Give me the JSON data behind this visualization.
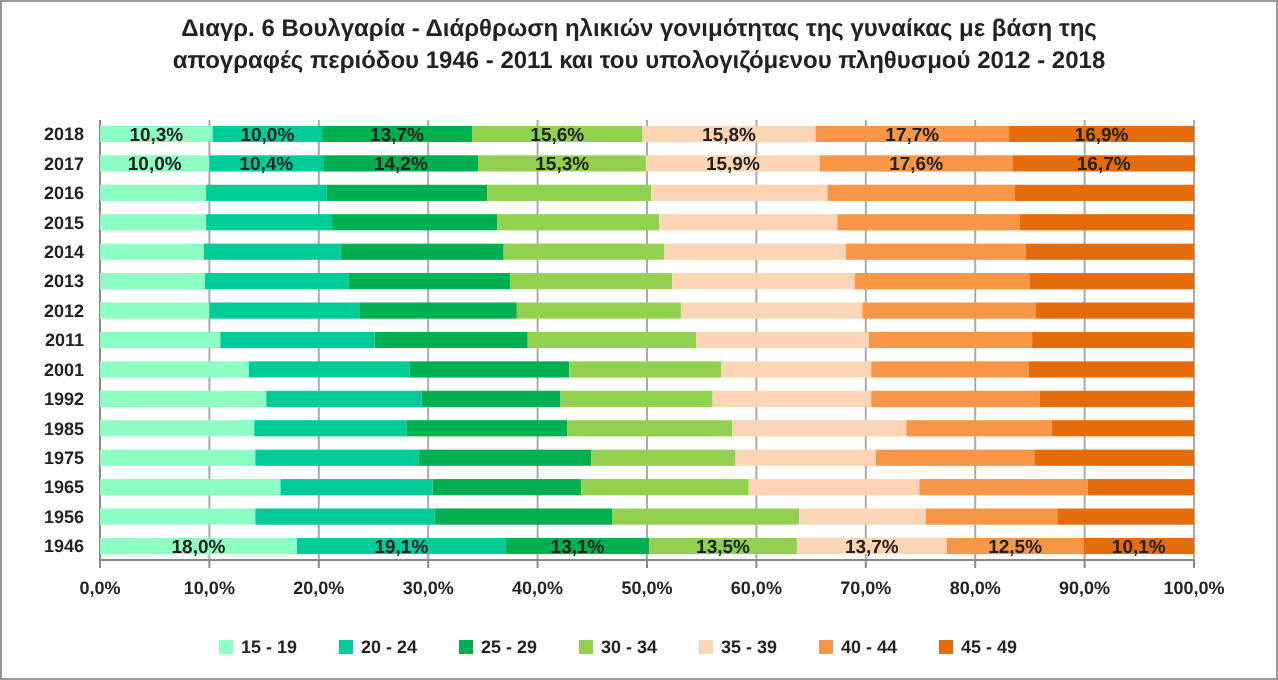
{
  "chart_data": {
    "type": "bar",
    "orientation": "horizontal",
    "stacked": true,
    "title": "Διαγρ. 6   Βουλγαρία - Διάρθρωση ηλικιών γονιμότητας της γυναίκας με βάση της απογραφές περιόδου  1946 - 2011 και του υπολογιζόμενου πληθυσμού 2012 - 2018",
    "categories": [
      "2018",
      "2017",
      "2016",
      "2015",
      "2014",
      "2013",
      "2012",
      "2011",
      "2001",
      "1992",
      "1985",
      "1975",
      "1965",
      "1956",
      "1946"
    ],
    "xlim": [
      0,
      100
    ],
    "xticks": [
      {
        "value": 0,
        "label": "0,0%"
      },
      {
        "value": 10,
        "label": "10,0%"
      },
      {
        "value": 20,
        "label": "20,0%"
      },
      {
        "value": 30,
        "label": "30,0%"
      },
      {
        "value": 40,
        "label": "40,0%"
      },
      {
        "value": 50,
        "label": "50,0%"
      },
      {
        "value": 60,
        "label": "60,0%"
      },
      {
        "value": 70,
        "label": "70,0%"
      },
      {
        "value": 80,
        "label": "80,0%"
      },
      {
        "value": 90,
        "label": "90,0%"
      },
      {
        "value": 100,
        "label": "100,0%"
      }
    ],
    "grid": "x",
    "legend": "bottom",
    "series": [
      {
        "name": "15 - 19",
        "color": "#8effc2",
        "values": [
          10.3,
          10.0,
          9.7,
          9.7,
          9.5,
          9.6,
          10.0,
          11.0,
          13.6,
          15.2,
          14.1,
          14.2,
          16.5,
          14.2,
          18.0
        ],
        "value_labels": [
          "10,3%",
          "10,0%",
          null,
          null,
          null,
          null,
          null,
          null,
          null,
          null,
          null,
          null,
          null,
          null,
          "18,0%"
        ]
      },
      {
        "name": "20 - 24",
        "color": "#00cc99",
        "values": [
          10.0,
          10.4,
          11.0,
          11.5,
          12.5,
          13.1,
          13.7,
          14.1,
          14.7,
          14.2,
          13.9,
          14.9,
          13.9,
          16.4,
          19.1
        ],
        "value_labels": [
          "10,0%",
          "10,4%",
          null,
          null,
          null,
          null,
          null,
          null,
          null,
          null,
          null,
          null,
          null,
          null,
          "19,1%"
        ]
      },
      {
        "name": "25 - 29",
        "color": "#00b050",
        "values": [
          13.7,
          14.2,
          14.7,
          15.1,
          14.9,
          14.8,
          14.4,
          14.0,
          14.6,
          12.7,
          14.7,
          15.8,
          13.6,
          16.2,
          13.1
        ],
        "value_labels": [
          "13,7%",
          "14,2%",
          null,
          null,
          null,
          null,
          null,
          null,
          null,
          null,
          null,
          null,
          null,
          null,
          "13,1%"
        ]
      },
      {
        "name": "30 - 34",
        "color": "#92d050",
        "values": [
          15.6,
          15.3,
          15.0,
          14.8,
          14.7,
          14.8,
          15.0,
          15.4,
          13.9,
          13.9,
          15.1,
          13.2,
          15.3,
          17.1,
          13.5
        ],
        "value_labels": [
          "15,6%",
          "15,3%",
          null,
          null,
          null,
          null,
          null,
          null,
          null,
          null,
          null,
          null,
          null,
          null,
          "13,5%"
        ]
      },
      {
        "name": "35 - 39",
        "color": "#fcd5b4",
        "values": [
          15.8,
          15.9,
          16.1,
          16.3,
          16.6,
          16.7,
          16.6,
          15.8,
          13.7,
          14.5,
          15.9,
          12.8,
          15.6,
          11.6,
          13.7
        ],
        "value_labels": [
          "15,8%",
          "15,9%",
          null,
          null,
          null,
          null,
          null,
          null,
          null,
          null,
          null,
          null,
          null,
          null,
          "13,7%"
        ]
      },
      {
        "name": "40 - 44",
        "color": "#f79646",
        "values": [
          17.7,
          17.6,
          17.1,
          16.7,
          16.4,
          16.0,
          15.8,
          14.9,
          14.4,
          15.4,
          13.3,
          14.5,
          15.4,
          12.0,
          12.5
        ],
        "value_labels": [
          "17,7%",
          "17,6%",
          null,
          null,
          null,
          null,
          null,
          null,
          null,
          null,
          null,
          null,
          null,
          null,
          "12,5%"
        ]
      },
      {
        "name": "45 - 49",
        "color": "#e46c0a",
        "values": [
          16.9,
          16.7,
          16.4,
          15.9,
          15.4,
          15.0,
          14.5,
          14.8,
          15.1,
          14.1,
          13.0,
          14.6,
          9.7,
          12.5,
          10.1
        ],
        "value_labels": [
          "16,9%",
          "16,7%",
          null,
          null,
          null,
          null,
          null,
          null,
          null,
          null,
          null,
          null,
          null,
          null,
          "10,1%"
        ]
      }
    ]
  }
}
